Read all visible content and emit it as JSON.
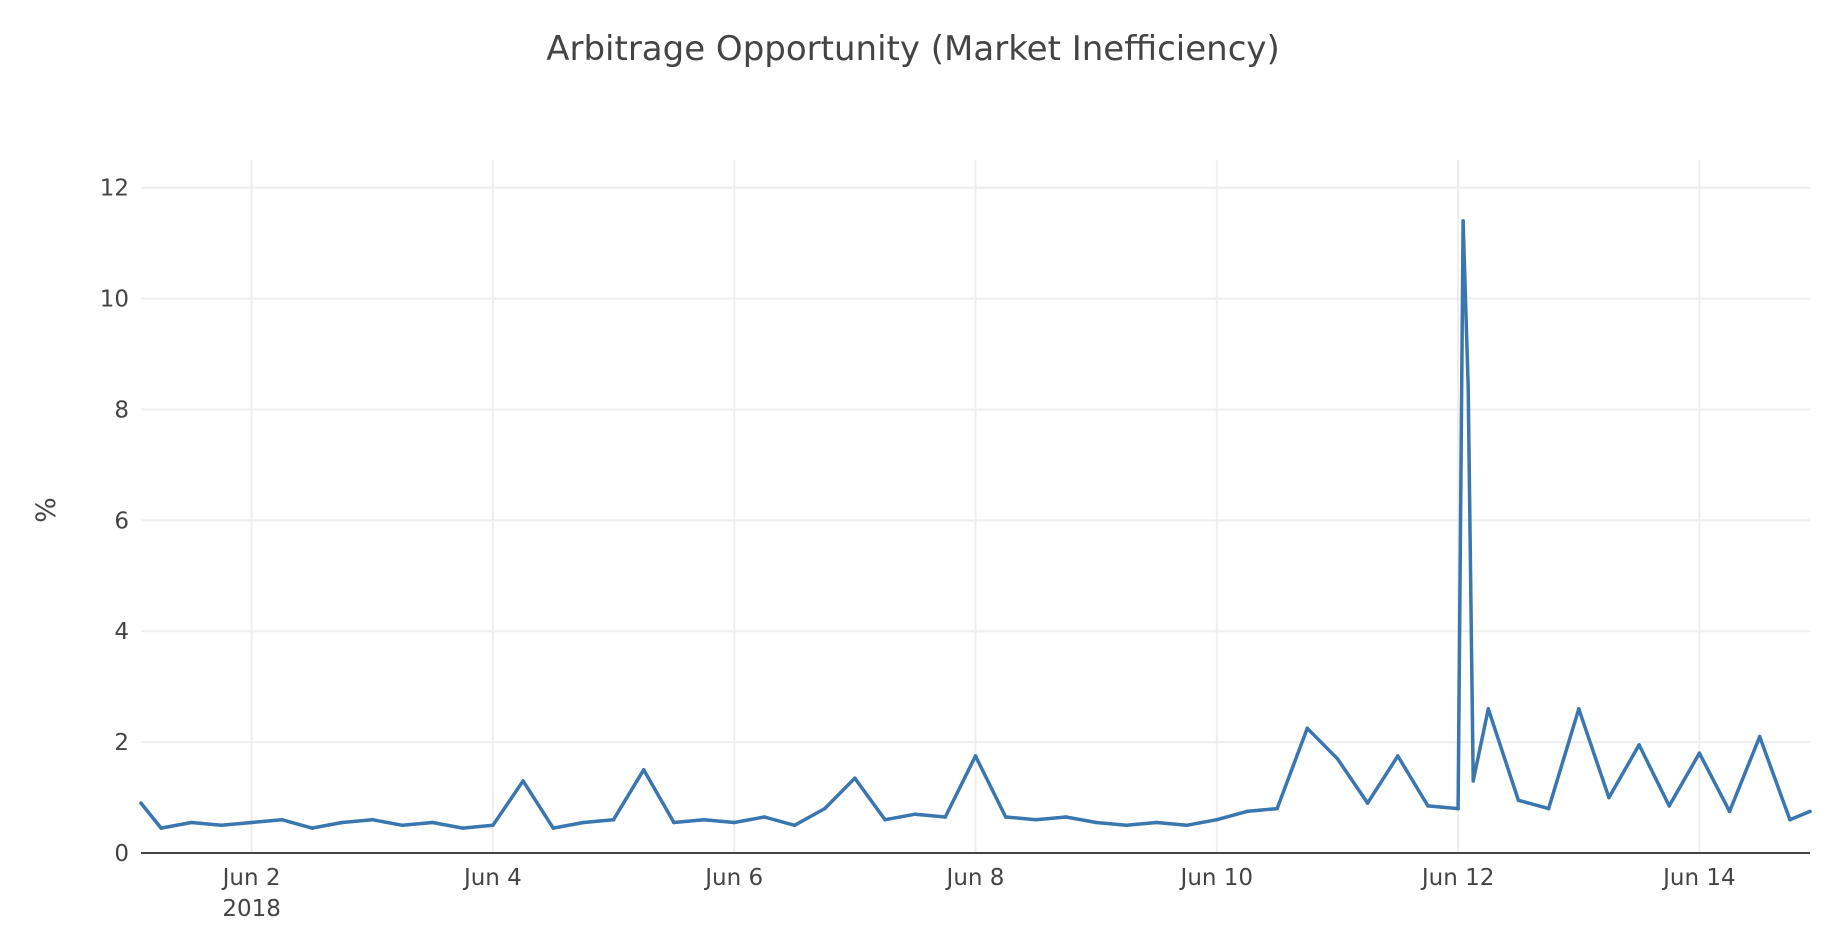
{
  "chart_data": {
    "type": "line",
    "title": "Arbitrage Opportunity (Market Inefficiency)",
    "xlabel": "",
    "ylabel": "%",
    "x_range": [
      "2018-06-01T02:00",
      "2018-06-14T22:00"
    ],
    "ylim": [
      0,
      12.5
    ],
    "y_ticks": [
      0,
      2,
      4,
      6,
      8,
      10,
      12
    ],
    "x_ticks": [
      {
        "date": "2018-06-02",
        "label": "Jun 2",
        "sublabel": "2018"
      },
      {
        "date": "2018-06-04",
        "label": "Jun 4"
      },
      {
        "date": "2018-06-06",
        "label": "Jun 6"
      },
      {
        "date": "2018-06-08",
        "label": "Jun 8"
      },
      {
        "date": "2018-06-10",
        "label": "Jun 10"
      },
      {
        "date": "2018-06-12",
        "label": "Jun 12"
      },
      {
        "date": "2018-06-14",
        "label": "Jun 14"
      }
    ],
    "grid": true,
    "legend": "none",
    "color": "#3a76af",
    "series": [
      {
        "x": [
          "2018-06-01T02:00",
          "2018-06-01T06:00",
          "2018-06-01T12:00",
          "2018-06-01T18:00",
          "2018-06-02T00:00",
          "2018-06-02T06:00",
          "2018-06-02T12:00",
          "2018-06-02T18:00",
          "2018-06-03T00:00",
          "2018-06-03T06:00",
          "2018-06-03T12:00",
          "2018-06-03T18:00",
          "2018-06-04T00:00",
          "2018-06-04T06:00",
          "2018-06-04T12:00",
          "2018-06-04T18:00",
          "2018-06-05T00:00",
          "2018-06-05T06:00",
          "2018-06-05T12:00",
          "2018-06-05T18:00",
          "2018-06-06T00:00",
          "2018-06-06T06:00",
          "2018-06-06T12:00",
          "2018-06-06T18:00",
          "2018-06-07T00:00",
          "2018-06-07T06:00",
          "2018-06-07T12:00",
          "2018-06-07T18:00",
          "2018-06-08T00:00",
          "2018-06-08T06:00",
          "2018-06-08T12:00",
          "2018-06-08T18:00",
          "2018-06-09T00:00",
          "2018-06-09T06:00",
          "2018-06-09T12:00",
          "2018-06-09T18:00",
          "2018-06-10T00:00",
          "2018-06-10T06:00",
          "2018-06-10T12:00",
          "2018-06-10T18:00",
          "2018-06-11T00:00",
          "2018-06-11T06:00",
          "2018-06-11T12:00",
          "2018-06-11T18:00",
          "2018-06-12T00:00",
          "2018-06-12T01:00",
          "2018-06-12T02:00",
          "2018-06-12T03:00",
          "2018-06-12T06:00",
          "2018-06-12T12:00",
          "2018-06-12T18:00",
          "2018-06-13T00:00",
          "2018-06-13T06:00",
          "2018-06-13T12:00",
          "2018-06-13T18:00",
          "2018-06-14T00:00",
          "2018-06-14T06:00",
          "2018-06-14T12:00",
          "2018-06-14T18:00",
          "2018-06-14T22:00"
        ],
        "y": [
          0.9,
          0.45,
          0.55,
          0.5,
          0.55,
          0.6,
          0.45,
          0.55,
          0.6,
          0.5,
          0.55,
          0.45,
          0.5,
          1.3,
          0.45,
          0.55,
          0.6,
          1.5,
          0.55,
          0.6,
          0.55,
          0.65,
          0.5,
          0.8,
          1.35,
          0.6,
          0.7,
          0.65,
          1.75,
          0.65,
          0.6,
          0.65,
          0.55,
          0.5,
          0.55,
          0.5,
          0.6,
          0.75,
          0.8,
          2.25,
          1.7,
          0.9,
          1.75,
          0.85,
          0.8,
          11.4,
          8.4,
          1.3,
          2.6,
          0.95,
          0.8,
          2.6,
          1.0,
          1.95,
          0.85,
          1.8,
          0.75,
          2.1,
          0.6,
          0.75
        ]
      }
    ]
  }
}
